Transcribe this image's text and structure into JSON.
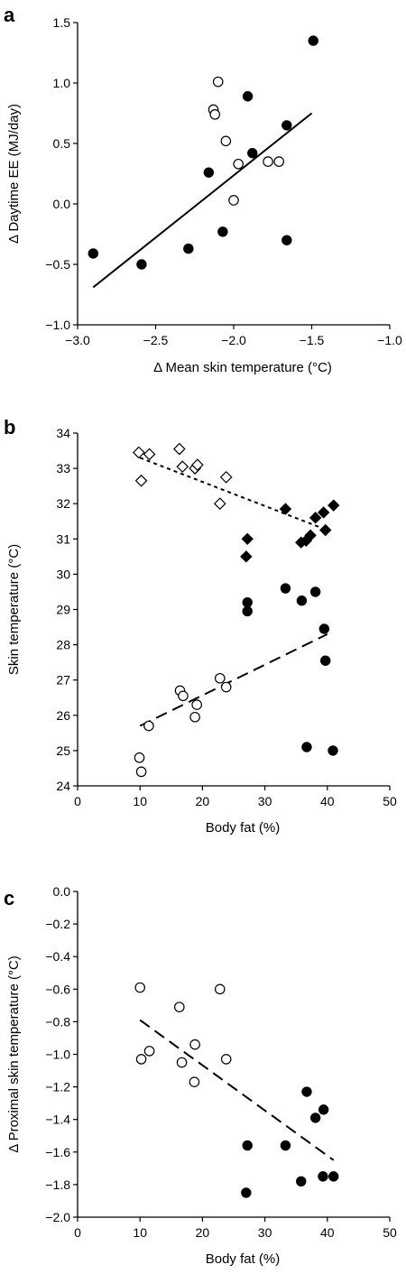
{
  "chart_data": [
    {
      "type": "scatter",
      "panel_label": "a",
      "xlabel": "Δ Mean skin temperature (°C)",
      "ylabel": "Δ Daytime EE  (MJ/day)",
      "xlim": [
        -3.0,
        -1.0
      ],
      "ylim": [
        -1.0,
        1.5
      ],
      "xticks": [
        -3.0,
        -2.5,
        -2.0,
        -1.5,
        -1.0
      ],
      "xtick_labels": [
        "−3.0",
        "−2.5",
        "−2.0",
        "−1.5",
        "−1.0"
      ],
      "yticks": [
        -1.0,
        -0.5,
        0.0,
        0.5,
        1.0,
        1.5
      ],
      "ytick_labels": [
        "−1.0",
        "−0.5",
        "0.0",
        "0.5",
        "1.0",
        "1.5"
      ],
      "series": [
        {
          "marker": "circle-filled",
          "points": [
            [
              -2.9,
              -0.41
            ],
            [
              -2.59,
              -0.5
            ],
            [
              -2.29,
              -0.37
            ],
            [
              -2.16,
              0.26
            ],
            [
              -2.07,
              -0.23
            ],
            [
              -1.91,
              0.89
            ],
            [
              -1.88,
              0.42
            ],
            [
              -1.66,
              0.65
            ],
            [
              -1.66,
              -0.3
            ],
            [
              -1.49,
              1.35
            ]
          ]
        },
        {
          "marker": "circle-open",
          "points": [
            [
              -2.1,
              1.01
            ],
            [
              -2.13,
              0.78
            ],
            [
              -2.12,
              0.74
            ],
            [
              -2.05,
              0.52
            ],
            [
              -1.97,
              0.33
            ],
            [
              -2.0,
              0.03
            ],
            [
              -1.78,
              0.35
            ],
            [
              -1.71,
              0.35
            ]
          ]
        }
      ],
      "lines": [
        {
          "style": "solid",
          "from": [
            -2.9,
            -0.69
          ],
          "to": [
            -1.5,
            0.75
          ]
        }
      ]
    },
    {
      "type": "scatter",
      "panel_label": "b",
      "xlabel": "Body fat (%)",
      "ylabel": "Skin temperature (°C)",
      "xlim": [
        0,
        50
      ],
      "ylim": [
        24,
        34
      ],
      "xticks": [
        0,
        10,
        20,
        30,
        40,
        50
      ],
      "xtick_labels": [
        "0",
        "10",
        "20",
        "30",
        "40",
        "50"
      ],
      "yticks": [
        24,
        25,
        26,
        27,
        28,
        29,
        30,
        31,
        32,
        33,
        34
      ],
      "ytick_labels": [
        "24",
        "25",
        "26",
        "27",
        "28",
        "29",
        "30",
        "31",
        "32",
        "33",
        "34"
      ],
      "series": [
        {
          "marker": "diamond-open",
          "points": [
            [
              9.8,
              33.45
            ],
            [
              10.2,
              32.65
            ],
            [
              11.5,
              33.4
            ],
            [
              16.3,
              33.55
            ],
            [
              16.8,
              33.05
            ],
            [
              18.8,
              33.0
            ],
            [
              19.2,
              33.1
            ],
            [
              22.8,
              32.0
            ],
            [
              23.8,
              32.75
            ]
          ]
        },
        {
          "marker": "diamond-filled",
          "points": [
            [
              27.2,
              31.0
            ],
            [
              27.0,
              30.5
            ],
            [
              33.3,
              31.85
            ],
            [
              35.8,
              30.9
            ],
            [
              36.6,
              30.95
            ],
            [
              37.3,
              31.1
            ],
            [
              38.1,
              31.6
            ],
            [
              39.4,
              31.75
            ],
            [
              39.7,
              31.25
            ],
            [
              41.0,
              31.95
            ]
          ]
        },
        {
          "marker": "circle-open",
          "points": [
            [
              9.9,
              24.8
            ],
            [
              10.2,
              24.4
            ],
            [
              11.4,
              25.7
            ],
            [
              16.4,
              26.7
            ],
            [
              16.9,
              26.55
            ],
            [
              18.8,
              25.95
            ],
            [
              19.1,
              26.3
            ],
            [
              22.8,
              27.05
            ],
            [
              23.8,
              26.8
            ]
          ]
        },
        {
          "marker": "circle-filled",
          "points": [
            [
              27.2,
              29.2
            ],
            [
              27.2,
              28.95
            ],
            [
              33.3,
              29.6
            ],
            [
              35.9,
              29.25
            ],
            [
              38.1,
              29.5
            ],
            [
              39.5,
              28.45
            ],
            [
              39.7,
              27.55
            ],
            [
              36.7,
              25.1
            ],
            [
              40.9,
              25.0
            ]
          ]
        }
      ],
      "lines": [
        {
          "style": "short-dash",
          "from": [
            10,
            33.3
          ],
          "to": [
            40,
            31.25
          ]
        },
        {
          "style": "long-dash",
          "from": [
            10,
            25.7
          ],
          "to": [
            40,
            28.3
          ]
        }
      ]
    },
    {
      "type": "scatter",
      "panel_label": "c",
      "xlabel": "Body fat (%)",
      "ylabel": "Δ Proximal skin temperature (°C)",
      "xlim": [
        0,
        50
      ],
      "ylim": [
        -2.0,
        0.0
      ],
      "xticks": [
        0,
        10,
        20,
        30,
        40,
        50
      ],
      "xtick_labels": [
        "0",
        "10",
        "20",
        "30",
        "40",
        "50"
      ],
      "yticks": [
        -2.0,
        -1.8,
        -1.6,
        -1.4,
        -1.2,
        -1.0,
        -0.8,
        -0.6,
        -0.4,
        -0.2,
        0.0
      ],
      "ytick_labels": [
        "−2.0",
        "−1.8",
        "−1.6",
        "−1.4",
        "−1.2",
        "−1.0",
        "−0.8",
        "−0.6",
        "−0.4",
        "−0.2",
        "0.0"
      ],
      "series": [
        {
          "marker": "circle-open",
          "points": [
            [
              10.0,
              -0.59
            ],
            [
              10.2,
              -1.03
            ],
            [
              11.5,
              -0.98
            ],
            [
              16.3,
              -0.71
            ],
            [
              16.7,
              -1.05
            ],
            [
              18.8,
              -0.94
            ],
            [
              18.7,
              -1.17
            ],
            [
              22.8,
              -0.6
            ],
            [
              23.8,
              -1.03
            ]
          ]
        },
        {
          "marker": "circle-filled",
          "points": [
            [
              27.2,
              -1.56
            ],
            [
              27.0,
              -1.85
            ],
            [
              33.3,
              -1.56
            ],
            [
              35.8,
              -1.78
            ],
            [
              36.7,
              -1.23
            ],
            [
              38.1,
              -1.39
            ],
            [
              39.4,
              -1.34
            ],
            [
              39.3,
              -1.75
            ],
            [
              41.0,
              -1.75
            ]
          ]
        }
      ],
      "lines": [
        {
          "style": "long-dash",
          "from": [
            10,
            -0.79
          ],
          "to": [
            41,
            -1.65
          ]
        }
      ]
    }
  ]
}
